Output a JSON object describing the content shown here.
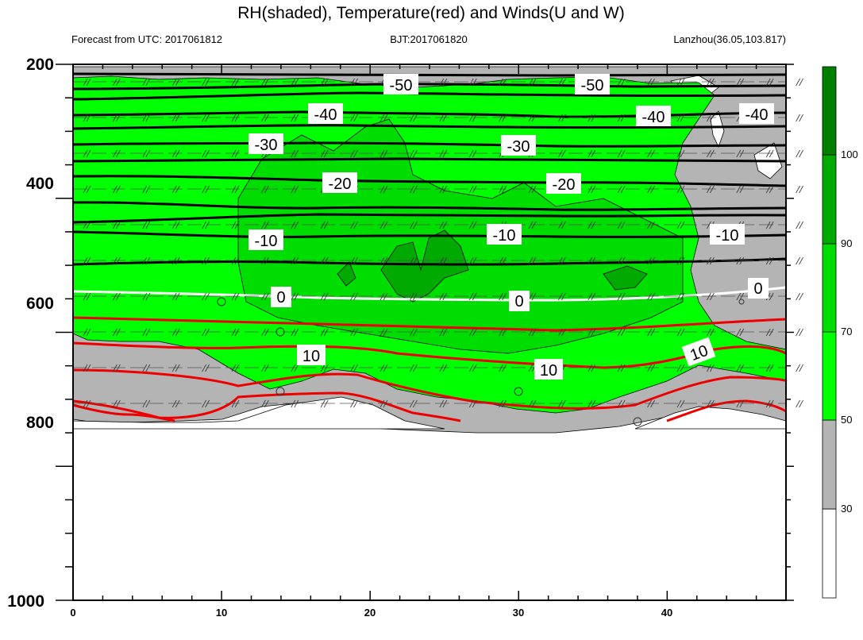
{
  "chart_data": {
    "type": "contour",
    "title": "RH(shaded), Temperature(red) and Winds(U and W)",
    "subtitle_left": "Forecast from UTC: 2017061812",
    "subtitle_center": "BJT:2017061820",
    "subtitle_right": "Lanzhou(36.05,103.817)",
    "x_ticks": [
      "0",
      "10",
      "20",
      "30",
      "40"
    ],
    "y_ticks": [
      "200",
      "400",
      "600",
      "800",
      "1000"
    ],
    "xlim": [
      0,
      48
    ],
    "ylim": [
      1000,
      200
    ],
    "colorbar": {
      "levels": [
        "30",
        "50",
        "70",
        "90",
        "100"
      ],
      "colors": [
        "#ffffff",
        "#b4b4b4",
        "#00ff00",
        "#00dd00",
        "#00aa00",
        "#007f00"
      ]
    },
    "temperature_contours": [
      {
        "label": "-50",
        "color": "#000000"
      },
      {
        "label": "-40",
        "color": "#000000"
      },
      {
        "label": "-30",
        "color": "#000000"
      },
      {
        "label": "-20",
        "color": "#000000"
      },
      {
        "label": "-10",
        "color": "#000000"
      },
      {
        "label": "0",
        "color": "#ffffff"
      },
      {
        "label": "10",
        "color": "#ff0000"
      }
    ]
  }
}
